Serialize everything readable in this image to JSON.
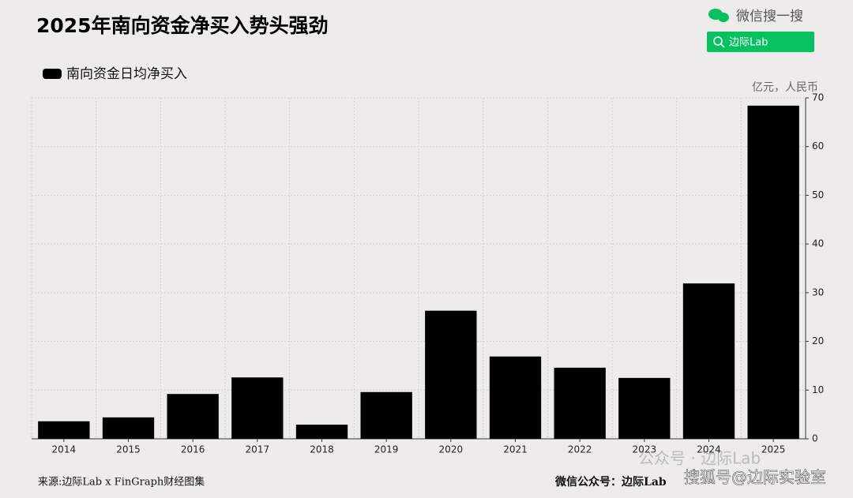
{
  "chart_data": {
    "type": "bar",
    "title": "2025年南向资金净买入势头强劲",
    "categories": [
      "2014",
      "2015",
      "2016",
      "2017",
      "2018",
      "2019",
      "2020",
      "2021",
      "2022",
      "2023",
      "2024",
      "2025"
    ],
    "series": [
      {
        "name": "南向资金日均净买入",
        "color": "#000000",
        "values": [
          3.6,
          4.4,
          9.2,
          12.6,
          2.9,
          9.6,
          26.3,
          16.9,
          14.6,
          12.5,
          31.9,
          68.4
        ]
      }
    ],
    "ylim": [
      0,
      70
    ],
    "yticks": [
      0,
      10,
      20,
      30,
      40,
      50,
      60,
      70
    ],
    "y_axis_label": "亿元，人民币",
    "y_axis_side": "right",
    "grid": true,
    "source": "来源:边际Lab x FinGraph财经图集"
  },
  "page": {
    "search_label": "微信搜一搜",
    "search_box": "边际Lab",
    "footer_account": "微信公众号：边际Lab",
    "watermark_1": "公众号 · 边际Lab",
    "watermark_2": "搜狐号@边际实验室"
  }
}
